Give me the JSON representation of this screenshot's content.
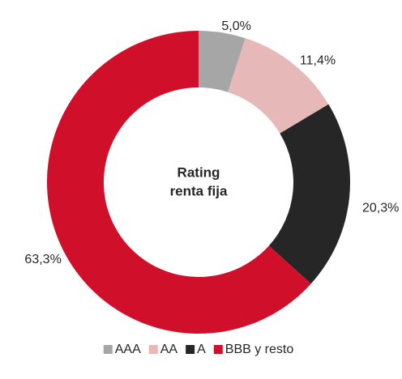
{
  "chart_data": {
    "type": "donut",
    "center_label": [
      "Rating",
      "renta fija"
    ],
    "categories": [
      "AAA",
      "AA",
      "A",
      "BBB y resto"
    ],
    "values": [
      5.0,
      11.4,
      20.3,
      63.3
    ],
    "value_labels": [
      "5,0%",
      "11,4%",
      "20,3%",
      "63,3%"
    ],
    "colors": [
      "#a6a6a6",
      "#e6b9b8",
      "#262626",
      "#d0102b"
    ],
    "legend": "bottom"
  }
}
